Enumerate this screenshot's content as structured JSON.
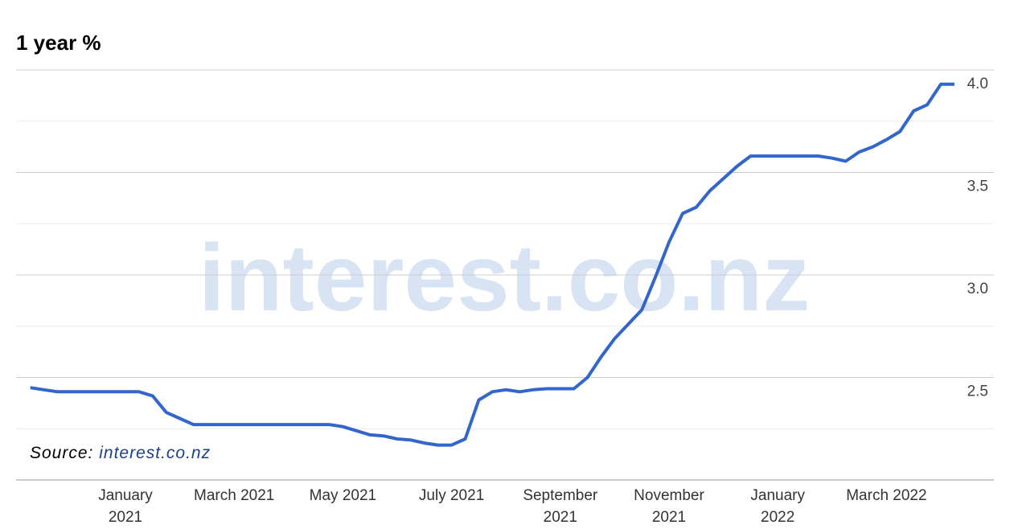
{
  "chart_data": {
    "type": "line",
    "title": "1 year %",
    "watermark": "interest.co.nz",
    "source_label": "Source:",
    "source_text": "interest.co.nz",
    "categories": [
      null,
      null,
      null,
      null,
      null,
      null,
      null,
      "January 2021",
      null,
      null,
      null,
      null,
      null,
      null,
      null,
      "March 2021",
      null,
      null,
      null,
      null,
      null,
      null,
      null,
      "May 2021",
      null,
      null,
      null,
      null,
      null,
      null,
      null,
      "July 2021",
      null,
      null,
      null,
      null,
      null,
      null,
      null,
      "September 2021",
      null,
      null,
      null,
      null,
      null,
      null,
      null,
      "November 2021",
      null,
      null,
      null,
      null,
      null,
      null,
      null,
      "January 2022",
      null,
      null,
      null,
      null,
      null,
      null,
      null,
      "March 2022",
      null,
      null,
      null,
      null,
      null
    ],
    "series": [
      {
        "name": "1 year %",
        "color": "#3366cc",
        "values": [
          2.45,
          2.44,
          2.43,
          2.43,
          2.43,
          2.43,
          2.43,
          2.43,
          2.43,
          2.41,
          2.33,
          2.3,
          2.27,
          2.27,
          2.27,
          2.27,
          2.27,
          2.27,
          2.27,
          2.27,
          2.27,
          2.27,
          2.27,
          2.26,
          2.24,
          2.22,
          2.215,
          2.2,
          2.195,
          2.18,
          2.17,
          2.17,
          2.2,
          2.39,
          2.43,
          2.44,
          2.43,
          2.44,
          2.445,
          2.445,
          2.445,
          2.5,
          2.6,
          2.69,
          2.76,
          2.83,
          2.99,
          3.16,
          3.3,
          3.33,
          3.41,
          3.47,
          3.53,
          3.58,
          3.58,
          3.58,
          3.58,
          3.58,
          3.58,
          3.57,
          3.555,
          3.6,
          3.625,
          3.66,
          3.7,
          3.8,
          3.83,
          3.93,
          3.93
        ]
      }
    ],
    "ylim": [
      2.0,
      4.0
    ],
    "yticks": [
      2.5,
      {
        "value": 3,
        "label": "3.0"
      },
      3.5,
      {
        "value": 4,
        "label": "4.0"
      }
    ],
    "minor_yticks": [
      2.25,
      2.75,
      3.25,
      3.75
    ],
    "grid": true
  }
}
